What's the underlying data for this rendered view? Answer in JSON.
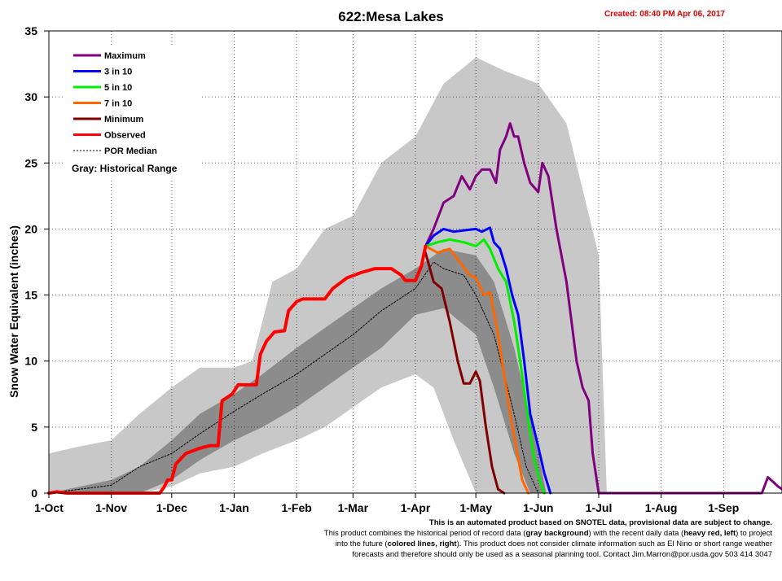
{
  "header": {
    "created": "Created: 08:40 PM Apr 06, 2017"
  },
  "footer": {
    "line1": "This is an automated product based on SNOTEL data, provisional data are subject to change.",
    "line2a": "This product combines the historical period of record data (",
    "line2b": "gray background",
    "line2c": ") with the recent daily data (",
    "line2d": "heavy red, left",
    "line2e": ") to project",
    "line3a": "into the future (",
    "line3b": "colored lines, right",
    "line3c": "). This product does not consider climate information such as El Nino or short range weather",
    "line4": "forecasts and therefore should only be used as a seasonal planning tool. Contact Jim.Marron@por.usda.gov 503 414 3047"
  },
  "legend": {
    "position": "top-left",
    "gray_note": "Gray: Historical Range"
  },
  "colors": {
    "maximum": "#800080",
    "three_in_ten": "#0000ff",
    "five_in_ten": "#00ee00",
    "seven_in_ten": "#ff6600",
    "minimum": "#800000",
    "observed": "#ff0000",
    "median": "#000000",
    "range_outer": "#c8c8c8",
    "range_inner": "#8c8c8c"
  },
  "chart_data": {
    "type": "line",
    "title": "622:Mesa Lakes",
    "ylabel": "Snow Water Equivalent (inches)",
    "xlabel": "",
    "ylim": [
      0,
      35
    ],
    "yticks": [
      0,
      5,
      10,
      15,
      20,
      25,
      30,
      35
    ],
    "grid": true,
    "xlim": [
      "2016-10-01",
      "2017-09-30"
    ],
    "xticks": [
      {
        "date": "2016-10-01",
        "label": "1-Oct"
      },
      {
        "date": "2016-11-01",
        "label": "1-Nov"
      },
      {
        "date": "2016-12-01",
        "label": "1-Dec"
      },
      {
        "date": "2017-01-01",
        "label": "1-Jan"
      },
      {
        "date": "2017-02-01",
        "label": "1-Feb"
      },
      {
        "date": "2017-03-01",
        "label": "1-Mar"
      },
      {
        "date": "2017-04-01",
        "label": "1-Apr"
      },
      {
        "date": "2017-05-01",
        "label": "1-May"
      },
      {
        "date": "2017-06-01",
        "label": "1-Jun"
      },
      {
        "date": "2017-07-01",
        "label": "1-Jul"
      },
      {
        "date": "2017-08-01",
        "label": "1-Aug"
      },
      {
        "date": "2017-09-01",
        "label": "1-Sep"
      }
    ],
    "historical_range": {
      "outer_upper": [
        [
          "2016-10-01",
          3
        ],
        [
          "2016-10-15",
          3.5
        ],
        [
          "2016-11-01",
          4
        ],
        [
          "2016-11-15",
          6
        ],
        [
          "2016-12-01",
          8
        ],
        [
          "2016-12-15",
          9.5
        ],
        [
          "2017-01-01",
          9.5
        ],
        [
          "2017-01-10",
          10
        ],
        [
          "2017-01-15",
          13
        ],
        [
          "2017-01-20",
          16
        ],
        [
          "2017-02-01",
          17
        ],
        [
          "2017-02-15",
          20
        ],
        [
          "2017-03-01",
          21
        ],
        [
          "2017-03-15",
          25
        ],
        [
          "2017-04-01",
          27
        ],
        [
          "2017-04-15",
          31
        ],
        [
          "2017-05-01",
          33
        ],
        [
          "2017-05-15",
          32
        ],
        [
          "2017-06-01",
          31
        ],
        [
          "2017-06-15",
          28
        ],
        [
          "2017-07-01",
          18
        ],
        [
          "2017-07-05",
          0
        ]
      ],
      "outer_lower": [
        [
          "2016-10-01",
          0
        ],
        [
          "2016-11-15",
          0
        ],
        [
          "2016-12-01",
          0.5
        ],
        [
          "2016-12-15",
          1.5
        ],
        [
          "2017-01-01",
          2
        ],
        [
          "2017-01-15",
          3
        ],
        [
          "2017-02-01",
          4
        ],
        [
          "2017-02-15",
          5
        ],
        [
          "2017-03-01",
          6.5
        ],
        [
          "2017-03-15",
          8
        ],
        [
          "2017-04-01",
          9
        ],
        [
          "2017-04-10",
          8
        ],
        [
          "2017-04-20",
          4
        ],
        [
          "2017-05-01",
          0
        ]
      ],
      "inner_upper": [
        [
          "2016-10-01",
          0
        ],
        [
          "2016-11-01",
          1
        ],
        [
          "2016-11-15",
          2
        ],
        [
          "2016-12-01",
          4
        ],
        [
          "2016-12-15",
          6
        ],
        [
          "2017-01-01",
          7.5
        ],
        [
          "2017-01-15",
          9
        ],
        [
          "2017-02-01",
          11
        ],
        [
          "2017-02-15",
          12.5
        ],
        [
          "2017-03-01",
          14
        ],
        [
          "2017-03-15",
          15.5
        ],
        [
          "2017-04-01",
          17
        ],
        [
          "2017-04-15",
          18.5
        ],
        [
          "2017-05-01",
          18
        ],
        [
          "2017-05-10",
          16
        ],
        [
          "2017-05-20",
          11
        ],
        [
          "2017-06-01",
          3
        ],
        [
          "2017-06-05",
          0
        ]
      ],
      "inner_lower": [
        [
          "2016-10-01",
          0
        ],
        [
          "2016-11-15",
          0
        ],
        [
          "2016-12-01",
          1
        ],
        [
          "2016-12-15",
          2.5
        ],
        [
          "2017-01-01",
          4
        ],
        [
          "2017-01-15",
          5
        ],
        [
          "2017-02-01",
          6.5
        ],
        [
          "2017-02-15",
          8
        ],
        [
          "2017-03-01",
          9.5
        ],
        [
          "2017-03-15",
          11
        ],
        [
          "2017-04-01",
          13.5
        ],
        [
          "2017-04-15",
          14
        ],
        [
          "2017-05-01",
          12
        ],
        [
          "2017-05-10",
          8
        ],
        [
          "2017-05-20",
          3
        ],
        [
          "2017-05-28",
          0
        ]
      ]
    },
    "series": [
      {
        "name": "Maximum",
        "points": [
          [
            "2017-04-06",
            18.7
          ],
          [
            "2017-04-10",
            20
          ],
          [
            "2017-04-15",
            22
          ],
          [
            "2017-04-20",
            22.5
          ],
          [
            "2017-04-24",
            24
          ],
          [
            "2017-04-28",
            23
          ],
          [
            "2017-05-01",
            24
          ],
          [
            "2017-05-04",
            24.5
          ],
          [
            "2017-05-08",
            24.5
          ],
          [
            "2017-05-11",
            23.5
          ],
          [
            "2017-05-13",
            26
          ],
          [
            "2017-05-16",
            27
          ],
          [
            "2017-05-18",
            28
          ],
          [
            "2017-05-20",
            27
          ],
          [
            "2017-05-22",
            27
          ],
          [
            "2017-05-25",
            25
          ],
          [
            "2017-05-28",
            23.5
          ],
          [
            "2017-06-01",
            22.8
          ],
          [
            "2017-06-03",
            25
          ],
          [
            "2017-06-06",
            24
          ],
          [
            "2017-06-10",
            20
          ],
          [
            "2017-06-15",
            16
          ],
          [
            "2017-06-20",
            10
          ],
          [
            "2017-06-23",
            8
          ],
          [
            "2017-06-26",
            7
          ],
          [
            "2017-06-28",
            3
          ],
          [
            "2017-07-01",
            0
          ],
          [
            "2017-09-20",
            0
          ],
          [
            "2017-09-23",
            1.2
          ],
          [
            "2017-09-26",
            0.8
          ],
          [
            "2017-09-28",
            0.5
          ],
          [
            "2017-09-30",
            0.3
          ]
        ]
      },
      {
        "name": "3 in 10",
        "points": [
          [
            "2017-04-06",
            18.7
          ],
          [
            "2017-04-10",
            19.5
          ],
          [
            "2017-04-15",
            20
          ],
          [
            "2017-04-20",
            19.8
          ],
          [
            "2017-04-25",
            19.9
          ],
          [
            "2017-05-01",
            20
          ],
          [
            "2017-05-04",
            19.8
          ],
          [
            "2017-05-08",
            20.1
          ],
          [
            "2017-05-10",
            19
          ],
          [
            "2017-05-13",
            18.5
          ],
          [
            "2017-05-16",
            17
          ],
          [
            "2017-05-19",
            15
          ],
          [
            "2017-05-22",
            13.5
          ],
          [
            "2017-05-25",
            10
          ],
          [
            "2017-05-28",
            6
          ],
          [
            "2017-06-01",
            3.5
          ],
          [
            "2017-06-04",
            1.5
          ],
          [
            "2017-06-07",
            0
          ]
        ]
      },
      {
        "name": "5 in 10",
        "points": [
          [
            "2017-04-06",
            18.7
          ],
          [
            "2017-04-12",
            19
          ],
          [
            "2017-04-18",
            19.2
          ],
          [
            "2017-04-25",
            19
          ],
          [
            "2017-05-01",
            18.7
          ],
          [
            "2017-05-05",
            19.2
          ],
          [
            "2017-05-08",
            18.5
          ],
          [
            "2017-05-12",
            17
          ],
          [
            "2017-05-16",
            16
          ],
          [
            "2017-05-20",
            13
          ],
          [
            "2017-05-23",
            10
          ],
          [
            "2017-05-27",
            5.5
          ],
          [
            "2017-05-30",
            2.5
          ],
          [
            "2017-06-02",
            0.8
          ],
          [
            "2017-06-04",
            0
          ]
        ]
      },
      {
        "name": "7 in 10",
        "points": [
          [
            "2017-04-06",
            18.7
          ],
          [
            "2017-04-12",
            18.2
          ],
          [
            "2017-04-18",
            18.5
          ],
          [
            "2017-04-23",
            17.5
          ],
          [
            "2017-04-28",
            16.5
          ],
          [
            "2017-05-01",
            16.3
          ],
          [
            "2017-05-05",
            15
          ],
          [
            "2017-05-08",
            15.2
          ],
          [
            "2017-05-12",
            12
          ],
          [
            "2017-05-15",
            9
          ],
          [
            "2017-05-18",
            6
          ],
          [
            "2017-05-21",
            3.5
          ],
          [
            "2017-05-24",
            1
          ],
          [
            "2017-05-27",
            0
          ]
        ]
      },
      {
        "name": "Minimum",
        "points": [
          [
            "2017-04-06",
            18.2
          ],
          [
            "2017-04-10",
            16
          ],
          [
            "2017-04-14",
            15.5
          ],
          [
            "2017-04-18",
            13
          ],
          [
            "2017-04-22",
            10
          ],
          [
            "2017-04-25",
            8.3
          ],
          [
            "2017-04-28",
            8.3
          ],
          [
            "2017-05-01",
            9.2
          ],
          [
            "2017-05-03",
            8.5
          ],
          [
            "2017-05-06",
            5
          ],
          [
            "2017-05-09",
            2
          ],
          [
            "2017-05-12",
            0.3
          ],
          [
            "2017-05-15",
            0
          ]
        ]
      },
      {
        "name": "Observed",
        "points": [
          [
            "2016-10-01",
            0
          ],
          [
            "2016-10-05",
            0.1
          ],
          [
            "2016-10-10",
            0
          ],
          [
            "2016-11-25",
            0
          ],
          [
            "2016-11-27",
            0.4
          ],
          [
            "2016-11-29",
            1
          ],
          [
            "2016-12-01",
            1
          ],
          [
            "2016-12-03",
            2.2
          ],
          [
            "2016-12-08",
            3
          ],
          [
            "2016-12-15",
            3.4
          ],
          [
            "2016-12-20",
            3.6
          ],
          [
            "2016-12-24",
            3.6
          ],
          [
            "2016-12-26",
            7
          ],
          [
            "2016-12-31",
            7.5
          ],
          [
            "2017-01-03",
            8.2
          ],
          [
            "2017-01-12",
            8.2
          ],
          [
            "2017-01-14",
            10.5
          ],
          [
            "2017-01-17",
            11.5
          ],
          [
            "2017-01-21",
            12.2
          ],
          [
            "2017-01-26",
            12.3
          ],
          [
            "2017-01-28",
            13.8
          ],
          [
            "2017-02-01",
            14.5
          ],
          [
            "2017-02-04",
            14.7
          ],
          [
            "2017-02-15",
            14.7
          ],
          [
            "2017-02-19",
            15.5
          ],
          [
            "2017-02-26",
            16.3
          ],
          [
            "2017-03-05",
            16.7
          ],
          [
            "2017-03-12",
            17
          ],
          [
            "2017-03-20",
            17
          ],
          [
            "2017-03-25",
            16.5
          ],
          [
            "2017-03-27",
            16.1
          ],
          [
            "2017-04-01",
            16.1
          ],
          [
            "2017-04-04",
            17.2
          ],
          [
            "2017-04-06",
            18.7
          ]
        ]
      },
      {
        "name": "POR Median",
        "points": [
          [
            "2016-10-01",
            0
          ],
          [
            "2016-11-01",
            0.6
          ],
          [
            "2016-11-15",
            2
          ],
          [
            "2016-12-01",
            3
          ],
          [
            "2016-12-15",
            4.5
          ],
          [
            "2017-01-01",
            6.2
          ],
          [
            "2017-01-15",
            7.5
          ],
          [
            "2017-02-01",
            9
          ],
          [
            "2017-02-15",
            10.5
          ],
          [
            "2017-03-01",
            12
          ],
          [
            "2017-03-15",
            13.8
          ],
          [
            "2017-04-01",
            15.5
          ],
          [
            "2017-04-10",
            17.5
          ],
          [
            "2017-04-15",
            17
          ],
          [
            "2017-04-25",
            16.5
          ],
          [
            "2017-05-01",
            15
          ],
          [
            "2017-05-10",
            12
          ],
          [
            "2017-05-20",
            6
          ],
          [
            "2017-05-26",
            2
          ],
          [
            "2017-06-01",
            0
          ]
        ]
      }
    ]
  }
}
